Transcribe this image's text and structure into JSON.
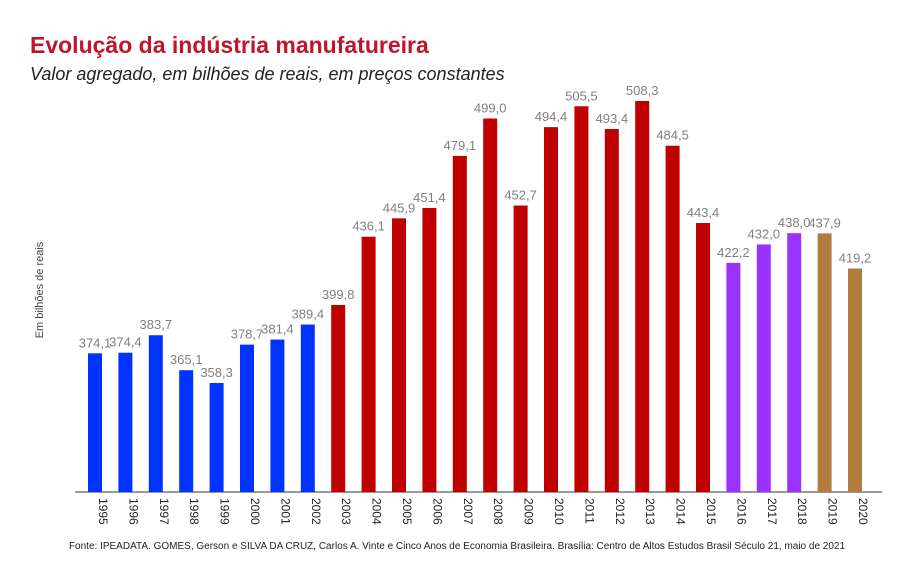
{
  "chart_data": {
    "type": "bar",
    "title": "Evolução da indústria manufatureira",
    "subtitle": "Valor agregado, em bilhões de reais, em preços constantes",
    "xlabel": "",
    "ylabel": "Em bilhões de reais",
    "categories": [
      "1995",
      "1996",
      "1997",
      "1998",
      "1999",
      "2000",
      "2001",
      "2002",
      "2003",
      "2004",
      "2005",
      "2006",
      "2007",
      "2008",
      "2009",
      "2010",
      "2011",
      "2012",
      "2013",
      "2014",
      "2015",
      "2016",
      "2017",
      "2018",
      "2019",
      "2020"
    ],
    "values": [
      374.1,
      374.4,
      383.7,
      365.1,
      358.3,
      378.7,
      381.4,
      389.4,
      399.8,
      436.1,
      445.9,
      451.4,
      479.1,
      499.0,
      452.7,
      494.4,
      505.5,
      493.4,
      508.3,
      484.5,
      443.4,
      422.2,
      432.0,
      438.0,
      437.9,
      419.2
    ],
    "labels": [
      "374,1",
      "374,4",
      "383,7",
      "365,1",
      "358,3",
      "378,7",
      "381,4",
      "389,4",
      "399,8",
      "436,1",
      "445,9",
      "451,4",
      "479,1",
      "499,0",
      "452,7",
      "494,4",
      "505,5",
      "493,4",
      "508,3",
      "484,5",
      "443,4",
      "422,2",
      "432,0",
      "438,0",
      "437,9",
      "419,2"
    ],
    "colors": [
      "#0033ff",
      "#0033ff",
      "#0033ff",
      "#0033ff",
      "#0033ff",
      "#0033ff",
      "#0033ff",
      "#0033ff",
      "#c00000",
      "#c00000",
      "#c00000",
      "#c00000",
      "#c00000",
      "#c00000",
      "#c00000",
      "#c00000",
      "#c00000",
      "#c00000",
      "#c00000",
      "#c00000",
      "#c00000",
      "#9933ff",
      "#9933ff",
      "#9933ff",
      "#b07d3f",
      "#b07d3f"
    ],
    "grid": false,
    "legend": "none"
  },
  "source": "Fonte: IPEADATA. GOMES, Gerson e SILVA DA CRUZ, Carlos A. Vinte e Cinco Anos de Economia Brasileira. Brasília: Centro de Altos Estudos Brasil Século 21, maio de 2021"
}
